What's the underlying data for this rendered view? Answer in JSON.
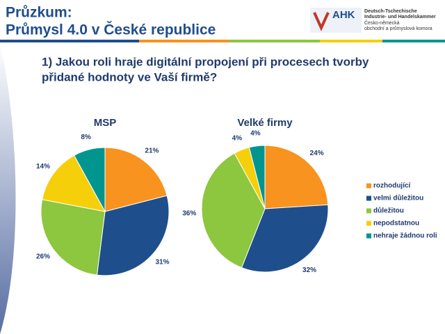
{
  "header": {
    "title_line1": "Průzkum:",
    "title_line2": "Průmysl 4.0 v České republice",
    "logo": "AHK",
    "logo_line1": "Deutsch-Tschechische",
    "logo_line2": "Industrie- und Handelskammer",
    "logo_line3": "Česko-německá",
    "logo_line4": "obchodní a průmyslová komora"
  },
  "question_line1": "1) Jakou roli hraje digitální propojení při procesech tvorby",
  "question_line2": "přidané hodnoty ve Vaší firmě?",
  "chart_data": [
    {
      "type": "pie",
      "title": "MSP",
      "categories": [
        "rozhodující",
        "velmi důležitou",
        "důležitou",
        "nepodstatnou",
        "nehraje žádnou roli"
      ],
      "values": [
        21,
        31,
        26,
        14,
        8
      ],
      "value_labels": [
        "21%",
        "31%",
        "26%",
        "14%",
        "8%"
      ],
      "colors": [
        "#f7931e",
        "#1f4e8c",
        "#8dc63f",
        "#f5cf0a",
        "#00958f"
      ]
    },
    {
      "type": "pie",
      "title": "Velké firmy",
      "values": [
        24,
        32,
        36,
        4,
        4
      ],
      "value_labels": [
        "24%",
        "32%",
        "36%",
        "4%",
        "4%"
      ],
      "colors": [
        "#f7931e",
        "#1f4e8c",
        "#8dc63f",
        "#f5cf0a",
        "#00958f"
      ]
    }
  ]
}
